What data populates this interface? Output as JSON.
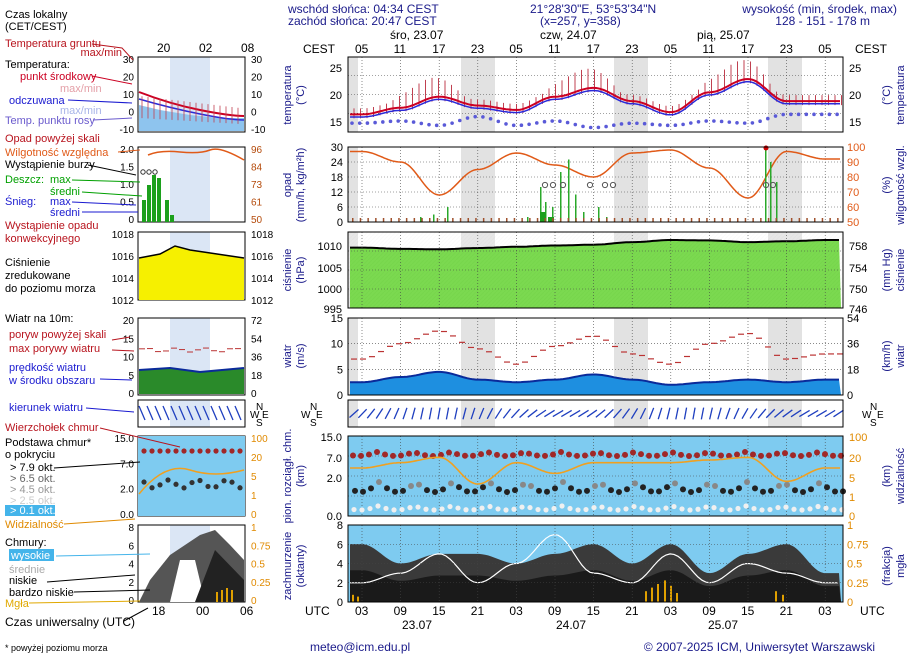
{
  "header": {
    "sunrise": "wschód słońca: 04:34 CEST",
    "sunset": "zachód słońca: 20:47 CEST",
    "coords": "21°28'30\"E, 53°53'34\"N",
    "grid": "(x=257, y=358)",
    "height_label": "wysokość (min, środek, max)",
    "height_values": "128 - 151 - 178 m"
  },
  "time_axis": {
    "local_label": "CEST",
    "utc_label": "UTC",
    "day_labels": [
      "śro, 23.07",
      "czw, 24.07",
      "pią, 25.07"
    ],
    "local_ticks": [
      "05",
      "11",
      "17",
      "23",
      "05",
      "11",
      "17",
      "23",
      "05",
      "11",
      "17",
      "23",
      "05"
    ],
    "utc_ticks": [
      "03",
      "09",
      "15",
      "21",
      "03",
      "09",
      "15",
      "21",
      "03",
      "09",
      "15",
      "21",
      "03"
    ],
    "utc_dates": [
      "23.07",
      "24.07",
      "25.07"
    ]
  },
  "legend": {
    "local_time": "Czas lokalny",
    "local_time_sub": "(CET/CEST)",
    "mini_top_ticks": [
      "20",
      "02",
      "08"
    ],
    "mini_bottom_ticks": [
      "18",
      "00",
      "06"
    ],
    "soil_temp": "Temperatura gruntu",
    "soil_temp_sub": "max/min",
    "temperature": "Temperatura:",
    "mid_point": "punkt środkowy",
    "max_min": "max/min",
    "perceived": "odczuwana",
    "perceived_max_min": "max/min",
    "dew_point": "Temp. punktu rosy",
    "precip_above": "Opad powyżej skali",
    "humidity": "Wilgotność względna",
    "thunder": "Wystąpienie burzy",
    "rain": "Deszcz:",
    "rain_max": "max",
    "rain_mean": "średni",
    "snow": "Śnieg:",
    "snow_max": "max",
    "snow_mean": "średni",
    "convective": "Wystąpienie opadu",
    "convective2": "konwekcyjnego",
    "pressure1": "Ciśnienie",
    "pressure2": "zredukowane",
    "pressure3": "do poziomu morza",
    "wind_10m": "Wiatr na 10m:",
    "gust_above": "poryw powyżej skali",
    "max_gust": "max porywy wiatru",
    "wind_speed": "prędkość wiatru",
    "wind_speed2": "w środku obszaru",
    "wind_dir": "kierunek wiatru",
    "cloud_top": "Wierzchołek chmur",
    "cloud_base": "Podstawa chmur*",
    "cloud_base2": "o pokryciu",
    "okt": [
      "> 7.9 okt.",
      "> 6.5 okt.",
      "> 4.5 okt.",
      "> 2.5 okt.",
      "> 0.1 okt."
    ],
    "visibility": "Widzialność",
    "clouds": "Chmury:",
    "high": "wysokie",
    "mid": "średnie",
    "low": "niskie",
    "very_low": "bardzo niskie",
    "fog": "Mgła",
    "utc": "Czas uniwersalny (UTC)",
    "footnote": "* powyżej poziomu morza"
  },
  "panels": {
    "temp": {
      "left": "temperatura",
      "left2": "(°C)",
      "right": "temperatura",
      "right2": "(°C)",
      "ticks": [
        "25",
        "20",
        "15"
      ],
      "mini_left": [
        "30",
        "20",
        "10",
        "0",
        "-10"
      ],
      "mini_right": [
        "30",
        "20",
        "10",
        "0",
        "-10"
      ]
    },
    "precip": {
      "left": "opad",
      "left2": "(mm/h, kg/m²h)",
      "right": "wilgotność wzgl.",
      "right2": "(%)",
      "ticks_left": [
        "30",
        "24",
        "18",
        "12",
        "6",
        "0"
      ],
      "ticks_right": [
        "100",
        "90",
        "80",
        "70",
        "60",
        "50"
      ],
      "mini_left": [
        "2.0",
        "1.5",
        "1.0",
        "0.5",
        "0"
      ],
      "mini_right": [
        "96",
        "84",
        "73",
        "61",
        "50"
      ]
    },
    "pressure": {
      "left": "ciśnienie",
      "left2": "(hPa)",
      "right": "ciśnienie",
      "right2": "(mm Hg)",
      "ticks_left": [
        "1010",
        "1005",
        "1000",
        "995"
      ],
      "ticks_right": [
        "758",
        "754",
        "750",
        "746"
      ],
      "mini_left": [
        "1018",
        "1016",
        "1014",
        "1012"
      ],
      "mini_right": [
        "1018",
        "1016",
        "1014",
        "1012"
      ]
    },
    "wind": {
      "left": "wiatr",
      "left2": "(m/s)",
      "right": "wiatr",
      "right2": "(km/h)",
      "ticks_left": [
        "15",
        "10",
        "5",
        "0"
      ],
      "ticks_right": [
        "54",
        "36",
        "18",
        "0"
      ],
      "mini_left": [
        "20",
        "15",
        "10",
        "5",
        "0"
      ],
      "mini_right": [
        "72",
        "54",
        "36",
        "18",
        "0"
      ]
    },
    "clouds": {
      "left": "pion. rozciągł. chm.",
      "left2": "(km)",
      "right": "widzialność",
      "right2": "(km)",
      "ticks_left": [
        "15.0",
        "7.0",
        "2.0",
        "0.0"
      ],
      "ticks_right": [
        "100",
        "20",
        "5",
        "1",
        "0"
      ],
      "mini_left": [
        "15.0",
        "7.0",
        "2.0",
        "0.0"
      ],
      "mini_right": [
        "100",
        "20",
        "5",
        "1",
        "0"
      ]
    },
    "cover": {
      "left": "zachmurzenie",
      "left2": "(oktanty)",
      "right": "(frakcja)",
      "right2": "mgła",
      "ticks_left": [
        "8",
        "6",
        "4",
        "2",
        "0"
      ],
      "ticks_right": [
        "1",
        "0.75",
        "0.5",
        "0.25",
        "0"
      ],
      "mini_left": [
        "8",
        "6",
        "4",
        "2",
        "0"
      ],
      "mini_right": [
        "1",
        "0.75",
        "0.5",
        "0.25",
        "0"
      ]
    }
  },
  "footer": {
    "email": "meteo@icm.edu.pl",
    "copyright": "© 2007-2025 ICM, Uniwersytet Warszawski"
  },
  "colors": {
    "temp": "#cc0022",
    "dew": "#5a5ad8",
    "humidity": "#e05a18",
    "pressure": "#66cc22",
    "wind": "#1f4fbf",
    "gust": "#bb3333",
    "night": "#e2e2e2",
    "cloudsky": "#7ecbf0"
  },
  "chart_data": [
    {
      "type": "line",
      "title": "temperatura",
      "ylabel": "(°C)",
      "ylim": [
        12,
        29
      ],
      "x": [
        "23.07 03",
        "23.07 09",
        "23.07 15",
        "23.07 21",
        "24.07 03",
        "24.07 09",
        "24.07 15",
        "24.07 21",
        "25.07 03",
        "25.07 09",
        "25.07 15",
        "25.07 21",
        "26.07 03"
      ],
      "series": [
        {
          "values": [
            16,
            17.5,
            20,
            18,
            17,
            20,
            22,
            19,
            16.5,
            21,
            24,
            19,
            19
          ]
        },
        {
          "values": [
            14,
            14.5,
            13.5,
            15.5,
            13.5,
            14.5,
            13,
            14,
            13.5,
            14.5,
            14,
            16,
            16
          ]
        }
      ]
    },
    {
      "type": "line",
      "title": "wilgotność wzgl.",
      "ylabel": "(%)",
      "ylim": [
        50,
        100
      ],
      "x": [
        "23.07 03",
        "23.07 09",
        "23.07 15",
        "23.07 21",
        "24.07 03",
        "24.07 09",
        "24.07 15",
        "24.07 21",
        "25.07 03",
        "25.07 09",
        "25.07 15",
        "25.07 21",
        "26.07 03"
      ],
      "series": [
        {
          "values": [
            97,
            90,
            68,
            85,
            96,
            88,
            80,
            96,
            98,
            86,
            66,
            97,
            92
          ]
        }
      ]
    },
    {
      "type": "area",
      "title": "ciśnienie",
      "ylabel": "(hPa)",
      "ylim": [
        995,
        1013
      ],
      "x": [
        "23.07 03",
        "23.07 09",
        "23.07 15",
        "23.07 21",
        "24.07 03",
        "24.07 09",
        "24.07 15",
        "24.07 21",
        "25.07 03",
        "25.07 09",
        "25.07 15",
        "25.07 21",
        "26.07 03"
      ],
      "series": [
        {
          "values": [
            1009.3,
            1009.0,
            1008.9,
            1009.2,
            1009.5,
            1009.8,
            1010.0,
            1010.6,
            1011.1,
            1011.0,
            1010.6,
            1010.8,
            1011.1
          ]
        }
      ]
    },
    {
      "type": "line",
      "title": "wiatr",
      "ylabel": "(m/s)",
      "ylim": [
        0,
        15
      ],
      "x": [
        "23.07 03",
        "23.07 09",
        "23.07 15",
        "23.07 21",
        "24.07 03",
        "24.07 09",
        "24.07 15",
        "24.07 21",
        "25.07 03",
        "25.07 09",
        "25.07 15",
        "25.07 21",
        "26.07 03"
      ],
      "series": [
        {
          "values": [
            2.5,
            3.5,
            4.5,
            3,
            2.5,
            3,
            4,
            3,
            2,
            2.5,
            3,
            2.5,
            3
          ]
        },
        {
          "values": [
            7,
            10,
            12.5,
            9,
            6,
            9.5,
            11.5,
            8,
            6,
            10,
            12,
            7,
            8
          ]
        }
      ]
    },
    {
      "type": "line",
      "title": "widzialność",
      "ylabel": "(km)",
      "ylim": [
        0,
        100
      ],
      "x": [
        "23.07 03",
        "23.07 09",
        "23.07 15",
        "23.07 21",
        "24.07 03",
        "24.07 09",
        "24.07 15",
        "24.07 21",
        "25.07 03",
        "25.07 09",
        "25.07 15",
        "25.07 21",
        "26.07 03"
      ],
      "series": [
        {
          "values": [
            18,
            20,
            22,
            12,
            20,
            16,
            20,
            20,
            20,
            21,
            22,
            13,
            18
          ]
        }
      ]
    },
    {
      "type": "area",
      "title": "zachmurzenie",
      "ylabel": "(oktanty)",
      "ylim": [
        0,
        8
      ],
      "x": [
        "23.07 03",
        "23.07 09",
        "23.07 15",
        "23.07 21",
        "24.07 03",
        "24.07 09",
        "24.07 15",
        "24.07 21",
        "25.07 03",
        "25.07 09",
        "25.07 15",
        "25.07 21",
        "26.07 03"
      ],
      "series": [
        {
          "values": [
            6,
            4,
            5,
            5,
            4,
            5,
            6,
            4,
            6,
            3,
            5,
            6,
            3
          ]
        }
      ]
    }
  ]
}
